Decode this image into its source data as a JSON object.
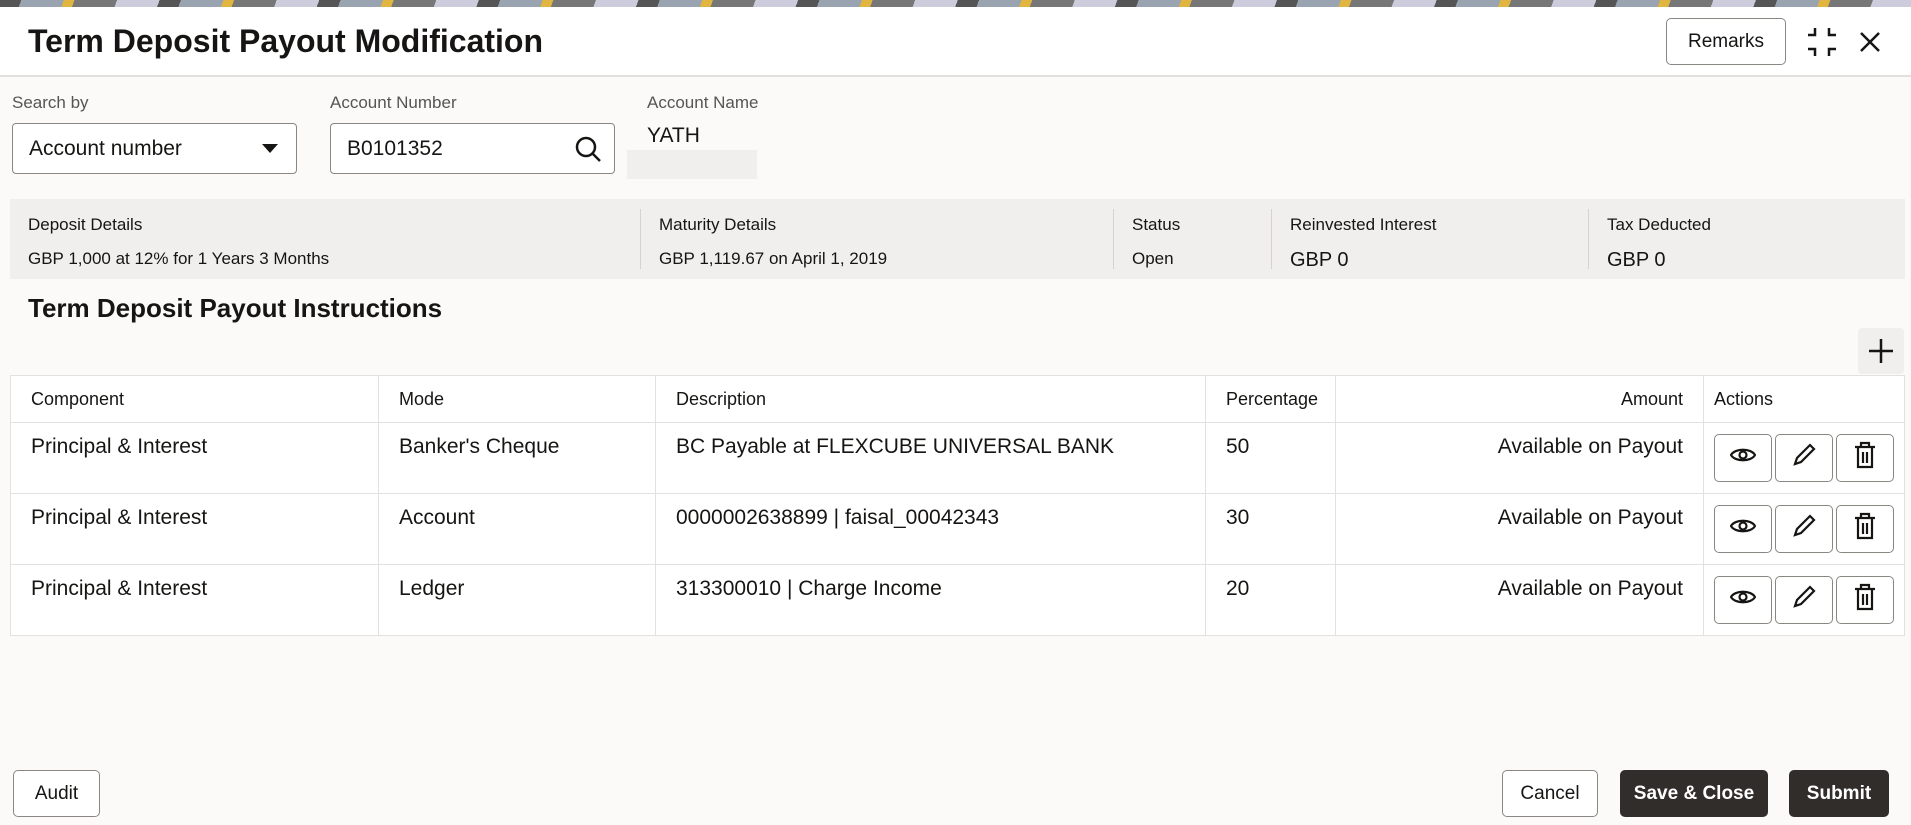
{
  "header": {
    "title": "Term Deposit Payout Modification",
    "remarks_label": "Remarks"
  },
  "search": {
    "search_by_label": "Search by",
    "search_by_value": "Account number",
    "account_number_label": "Account Number",
    "account_number_value": "B0101352",
    "account_name_label": "Account Name",
    "account_name_value": "YATH"
  },
  "summary": [
    {
      "label": "Deposit Details",
      "value": "GBP 1,000 at 12% for 1 Years 3 Months"
    },
    {
      "label": "Maturity Details",
      "value": "GBP 1,119.67 on April 1, 2019"
    },
    {
      "label": "Status",
      "value": "Open"
    },
    {
      "label": "Reinvested Interest",
      "value": "GBP 0"
    },
    {
      "label": "Tax Deducted",
      "value": "GBP 0"
    }
  ],
  "instructions": {
    "title": "Term Deposit Payout Instructions",
    "columns": [
      "Component",
      "Mode",
      "Description",
      "Percentage",
      "Amount",
      "Actions"
    ],
    "rows": [
      [
        "Principal & Interest",
        "Banker's Cheque",
        "BC Payable at FLEXCUBE UNIVERSAL BANK",
        "50",
        "Available on Payout"
      ],
      [
        "Principal & Interest",
        "Account",
        "0000002638899 | faisal_00042343",
        "30",
        "Available on Payout"
      ],
      [
        "Principal & Interest",
        "Ledger",
        "313300010 | Charge Income",
        "20",
        "Available on Payout"
      ]
    ]
  },
  "footer": {
    "audit": "Audit",
    "cancel": "Cancel",
    "save_close": "Save & Close",
    "submit": "Submit"
  }
}
